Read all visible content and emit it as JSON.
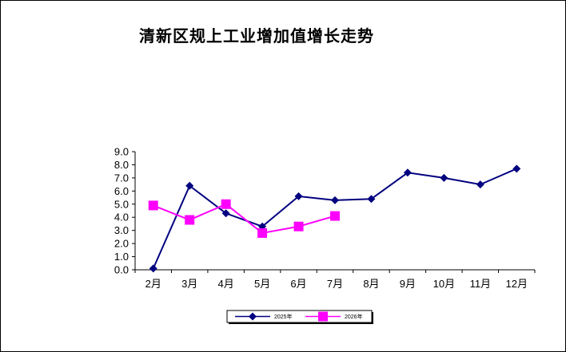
{
  "chart_data": {
    "type": "line",
    "title": "清新区规上工业增加值增长走势",
    "categories": [
      "2月",
      "3月",
      "4月",
      "5月",
      "6月",
      "7月",
      "8月",
      "9月",
      "10月",
      "11月",
      "12月"
    ],
    "y_ticks": [
      "0.0",
      "1.0",
      "2.0",
      "3.0",
      "4.0",
      "5.0",
      "6.0",
      "7.0",
      "8.0",
      "9.0"
    ],
    "ylim": [
      0,
      9
    ],
    "grid": false,
    "legend_position": "bottom",
    "series": [
      {
        "name": "2025年",
        "color": "#000080",
        "marker": "diamond",
        "values": [
          0.1,
          6.4,
          4.3,
          3.3,
          5.6,
          5.3,
          5.4,
          7.4,
          7.0,
          6.5,
          7.7
        ]
      },
      {
        "name": "2026年",
        "color": "#FF00FF",
        "marker": "square",
        "values": [
          4.9,
          3.8,
          5.0,
          2.8,
          3.3,
          4.1,
          null,
          null,
          null,
          null,
          null
        ]
      }
    ]
  }
}
